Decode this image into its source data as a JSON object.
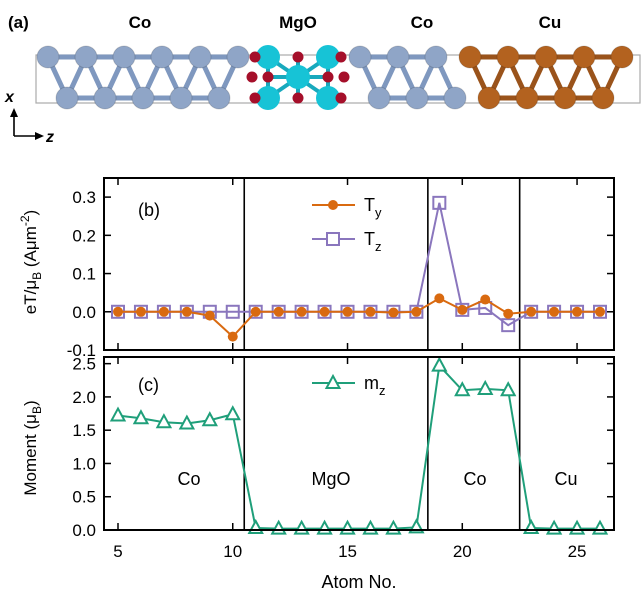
{
  "panel_a": {
    "label": "(a)",
    "regions": [
      "Co",
      "MgO",
      "Co",
      "Cu"
    ],
    "axis_x": "x",
    "axis_z": "z"
  },
  "colors": {
    "co_atom": "#8fa5c7",
    "co_bond": "#7f98bf",
    "mg_atom": "#17c3d6",
    "o_atom": "#a50f2a",
    "cu_atom": "#b3621f",
    "ty_series": "#d96a10",
    "tz_series": "#8a76bd",
    "mz_series": "#1f9f7a"
  },
  "chart_data": [
    {
      "type": "line",
      "panel": "(b)",
      "ylabel_parts": [
        "eT/μ",
        "B",
        " (Aμm",
        "-2",
        ")"
      ],
      "ylim": [
        -0.1,
        0.35
      ],
      "yticks": [
        "-0.1",
        "0.0",
        "0.1",
        "0.2",
        "0.3"
      ],
      "xlim": [
        5,
        26
      ],
      "separators": [
        10.5,
        18.5,
        22.5
      ],
      "series": [
        {
          "name": "T",
          "sub": "y",
          "marker": "circle",
          "x": [
            5,
            6,
            7,
            8,
            9,
            10,
            11,
            12,
            13,
            14,
            15,
            16,
            17,
            18,
            19,
            20,
            21,
            22,
            23,
            24,
            25,
            26
          ],
          "y": [
            0,
            0,
            0,
            0,
            -0.01,
            -0.065,
            0,
            0,
            0,
            0,
            0,
            0,
            -0.002,
            0,
            0.035,
            0.005,
            0.032,
            -0.005,
            0,
            0,
            0,
            0
          ]
        },
        {
          "name": "T",
          "sub": "z",
          "marker": "square",
          "x": [
            5,
            6,
            7,
            8,
            9,
            10,
            11,
            12,
            13,
            14,
            15,
            16,
            17,
            18,
            19,
            20,
            21,
            22,
            23,
            24,
            25,
            26
          ],
          "y": [
            0,
            0,
            0,
            0,
            0,
            0,
            0,
            0,
            0,
            0,
            0,
            0,
            0,
            0,
            0.285,
            0.005,
            0.01,
            -0.035,
            0,
            0,
            0,
            0
          ]
        }
      ]
    },
    {
      "type": "line",
      "panel": "(c)",
      "ylabel_parts": [
        "Moment (μ",
        "B",
        ")"
      ],
      "xlabel": "Atom No.",
      "ylim": [
        0,
        2.6
      ],
      "yticks": [
        "0.0",
        "0.5",
        "1.0",
        "1.5",
        "2.0",
        "2.5"
      ],
      "xlim": [
        5,
        26
      ],
      "xticks": [
        "5",
        "10",
        "15",
        "20",
        "25"
      ],
      "separators": [
        10.5,
        18.5,
        22.5
      ],
      "region_labels": [
        "Co",
        "MgO",
        "Co",
        "Cu"
      ],
      "series": [
        {
          "name": "m",
          "sub": "z",
          "marker": "triangle",
          "x": [
            5,
            6,
            7,
            8,
            9,
            10,
            11,
            12,
            13,
            14,
            15,
            16,
            17,
            18,
            19,
            20,
            21,
            22,
            23,
            24,
            25,
            26
          ],
          "y": [
            1.72,
            1.68,
            1.62,
            1.6,
            1.65,
            1.74,
            0.03,
            0.02,
            0.02,
            0.02,
            0.02,
            0.02,
            0.02,
            0.04,
            2.47,
            2.1,
            2.12,
            2.1,
            0.03,
            0.02,
            0.02,
            0.02
          ]
        }
      ]
    }
  ]
}
